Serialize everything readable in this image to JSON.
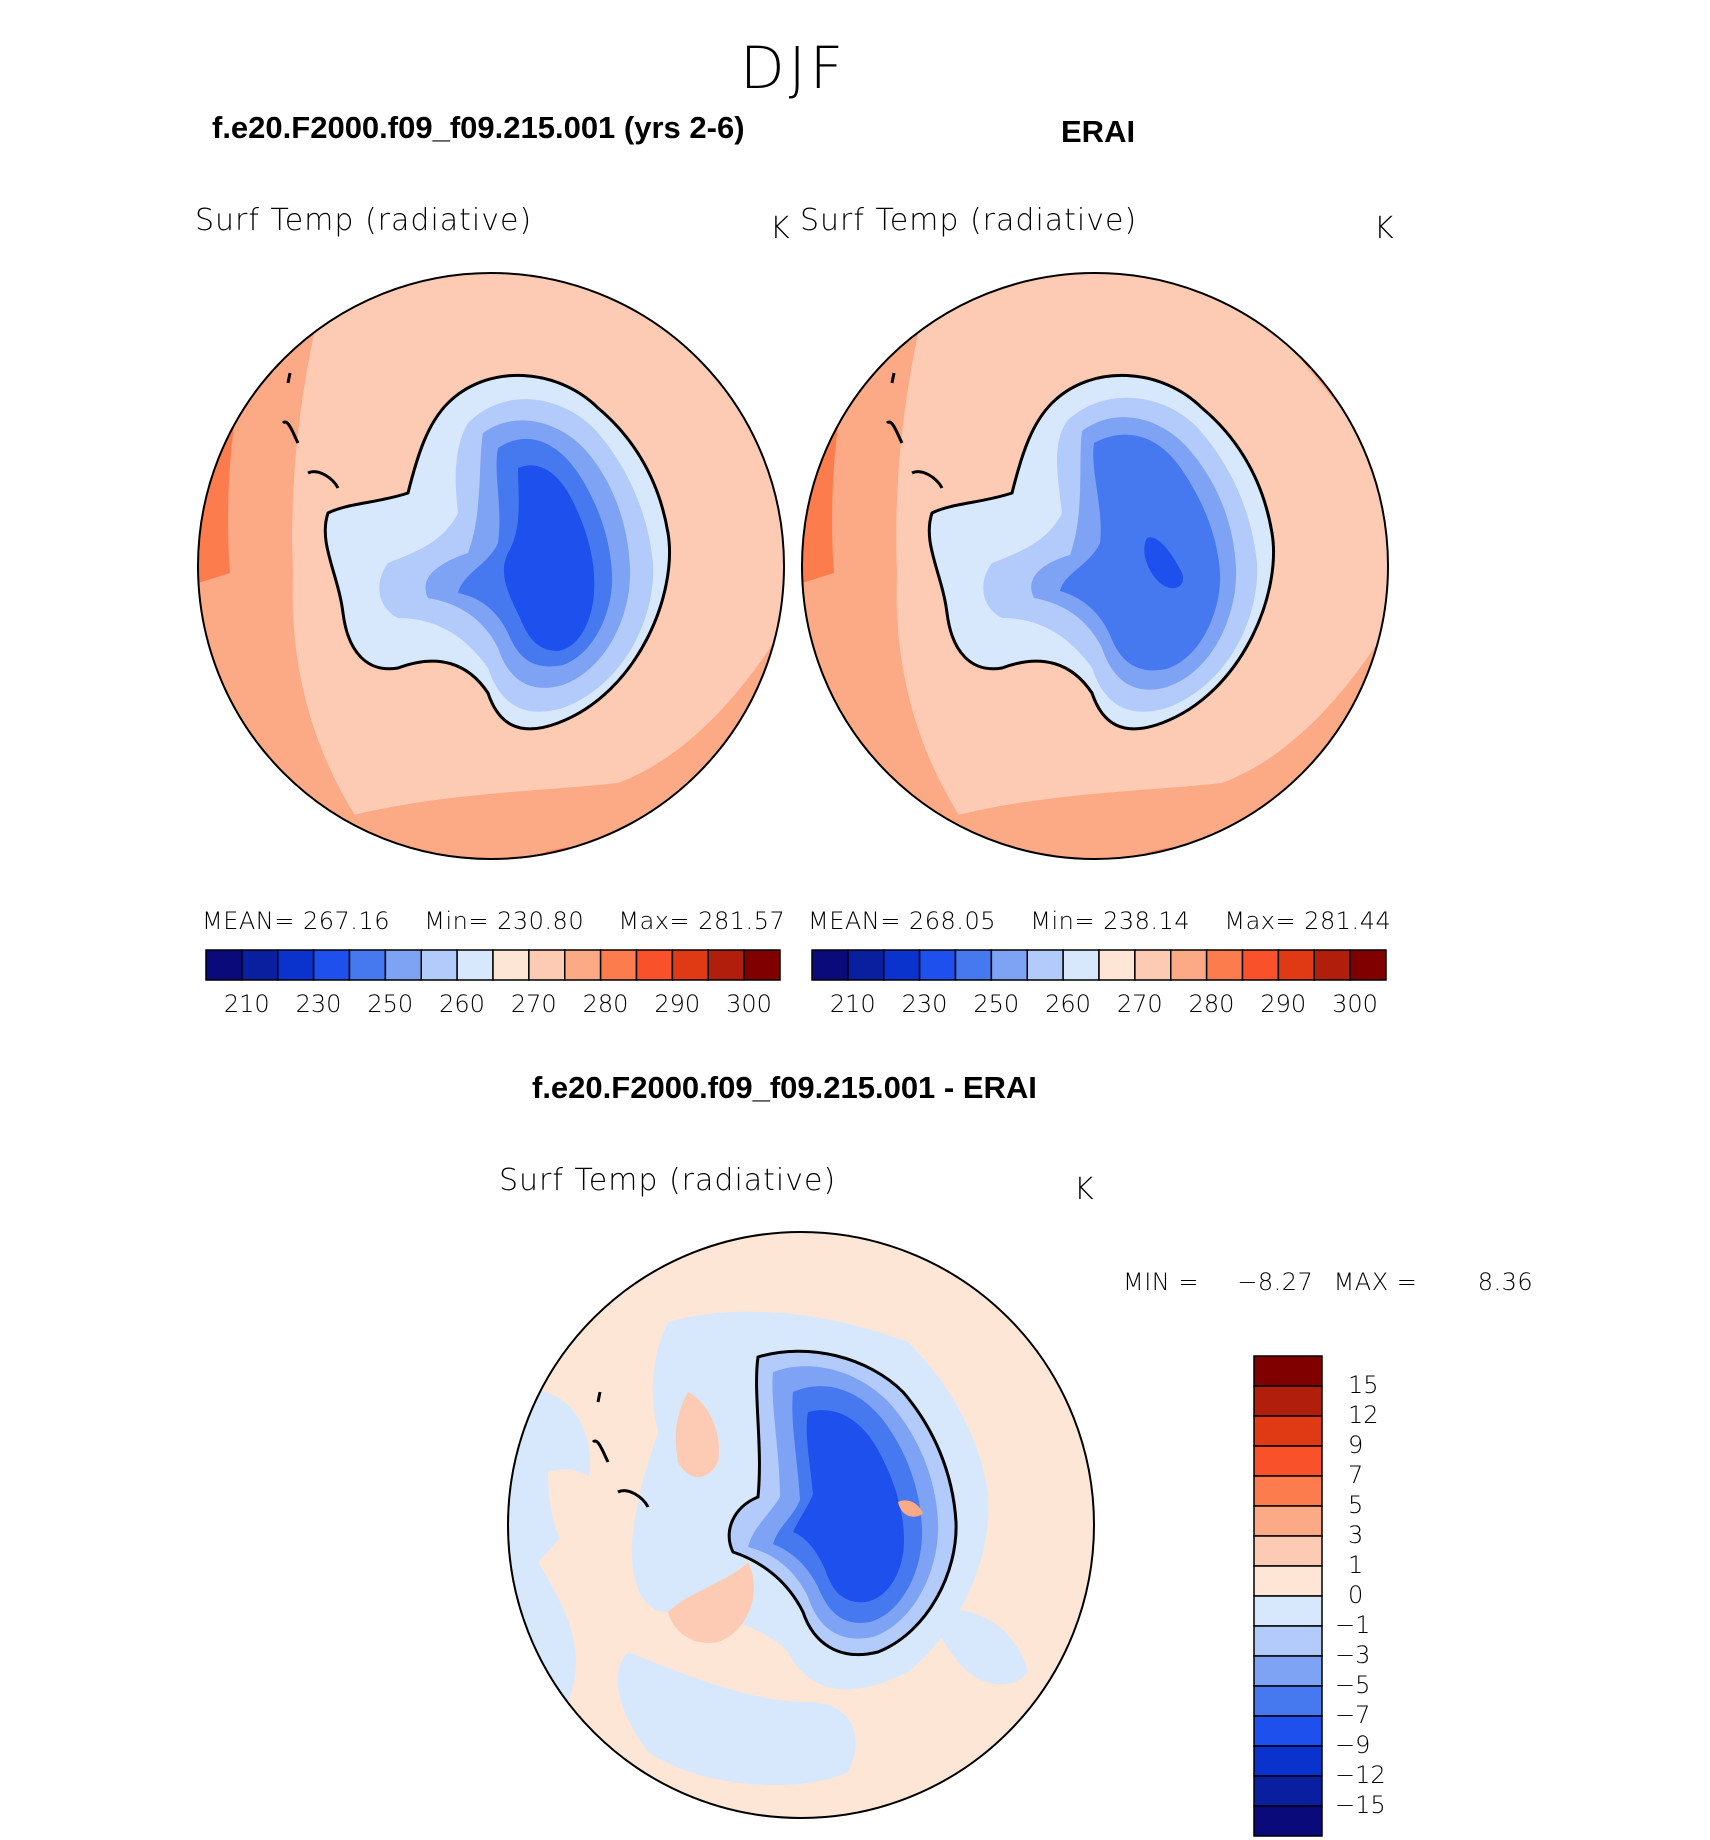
{
  "figure": {
    "season": "DJF"
  },
  "panels": [
    {
      "title": "f.e20.F2000.f09_f09.215.001 (yrs 2-6)",
      "variable": "Surf Temp (radiative)",
      "units": "K",
      "stats": {
        "mean_label": "MEAN=",
        "mean": "267.16",
        "min_label": "Min=",
        "min": "230.80",
        "max_label": "Max=",
        "max": "281.57"
      },
      "colorbar_ticks": [
        "210",
        "230",
        "250",
        "260",
        "270",
        "280",
        "290",
        "300"
      ]
    },
    {
      "title": "ERAI",
      "variable": "Surf Temp (radiative)",
      "units": "K",
      "stats": {
        "mean_label": "MEAN=",
        "mean": "268.05",
        "min_label": "Min=",
        "min": "238.14",
        "max_label": "Max=",
        "max": "281.44"
      },
      "colorbar_ticks": [
        "210",
        "230",
        "250",
        "260",
        "270",
        "280",
        "290",
        "300"
      ]
    }
  ],
  "difference": {
    "title": "f.e20.F2000.f09_f09.215.001 - ERAI",
    "variable": "Surf Temp (radiative)",
    "units": "K",
    "min_label": "MIN =",
    "min": "−8.27",
    "max_label": "MAX =",
    "max": "8.36",
    "colorbar_ticks": [
      "15",
      "12",
      "9",
      "7",
      "5",
      "3",
      "1",
      "0",
      "−1",
      "−3",
      "−5",
      "−7",
      "−9",
      "−12",
      "−15"
    ]
  },
  "colors": {
    "abs_scale": [
      "#0a0a7a",
      "#0a1ea0",
      "#0a32cc",
      "#1e50ee",
      "#4678f0",
      "#7ea3f5",
      "#b2cbfb",
      "#d8e8fc",
      "#fde6d6",
      "#fdcbb3",
      "#fca985",
      "#fc7c4e",
      "#f9522a",
      "#e03a14",
      "#b21e0c",
      "#800000"
    ],
    "diff_scale": [
      "#0a0a7a",
      "#0a1ea0",
      "#0a32cc",
      "#1e50ee",
      "#4678f0",
      "#7ea3f5",
      "#b2cbfb",
      "#d8e8fc",
      "#fde6d6",
      "#fdcbb3",
      "#fca985",
      "#fc7c4e",
      "#f9522a",
      "#e03a14",
      "#b21e0c",
      "#800000"
    ]
  }
}
